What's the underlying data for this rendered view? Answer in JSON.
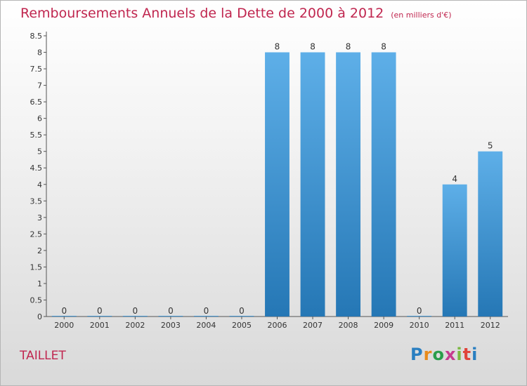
{
  "header": {
    "title": "Remboursements Annuels de la Dette de 2000 à 2012",
    "unit": "(en milliers d'€)"
  },
  "commune": "TAILLET",
  "logo": {
    "text": "Proxiti",
    "colors": [
      "#2a7fc1",
      "#e88a1a",
      "#2a9d4a",
      "#c63b8f",
      "#7ab840",
      "#e0443a",
      "#2a7fc1"
    ]
  },
  "chart_data": {
    "type": "bar",
    "title": "Remboursements Annuels de la Dette de 2000 à 2012",
    "categories": [
      "2000",
      "2001",
      "2002",
      "2003",
      "2004",
      "2005",
      "2006",
      "2007",
      "2008",
      "2009",
      "2010",
      "2011",
      "2012"
    ],
    "values": [
      0,
      0,
      0,
      0,
      0,
      0,
      8,
      8,
      8,
      8,
      0,
      4,
      5
    ],
    "data_labels": [
      "0",
      "0",
      "0",
      "0",
      "0",
      "0",
      "8",
      "8",
      "8",
      "8",
      "0",
      "4",
      "5"
    ],
    "y_ticks": [
      0,
      0.5,
      1,
      1.5,
      2,
      2.5,
      3,
      3.5,
      4,
      4.5,
      5,
      5.5,
      6,
      6.5,
      7,
      7.5,
      8,
      8.5
    ],
    "y_tick_labels": [
      "0",
      "0.5",
      "1",
      "1.5",
      "2",
      "2.5",
      "3",
      "3.5",
      "4",
      "4.5",
      "5",
      "5.5",
      "6",
      "6.5",
      "7",
      "7.5",
      "8",
      "8.5"
    ],
    "ylim": [
      0,
      8.5
    ],
    "xlabel": "",
    "ylabel": "",
    "bar_color_top": "#5eafe8",
    "bar_color_bottom": "#2577b5",
    "grid": false
  }
}
